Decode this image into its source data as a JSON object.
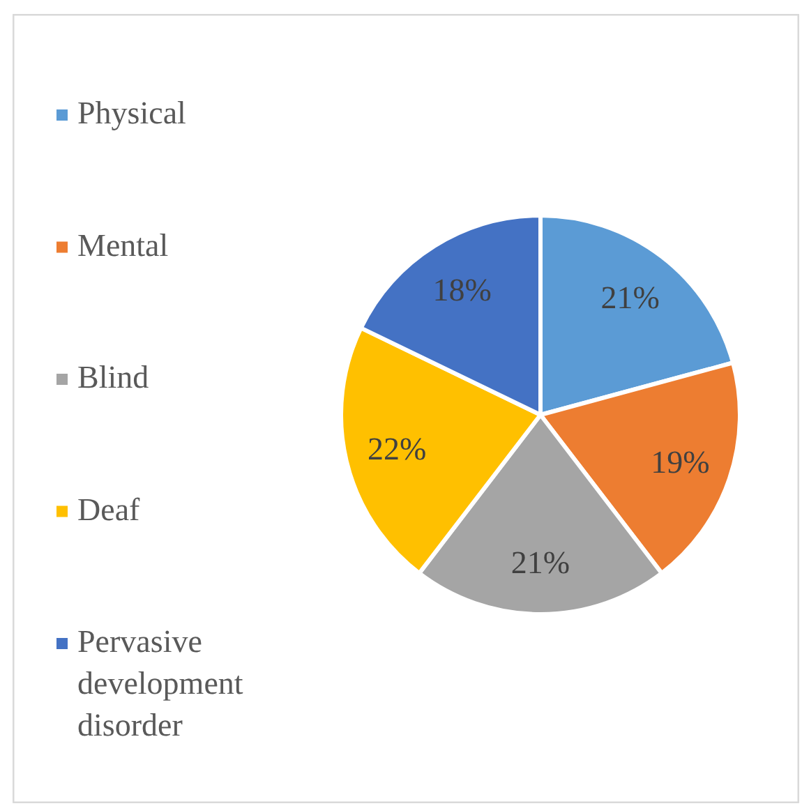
{
  "chart_data": {
    "type": "pie",
    "categories": [
      "Physical",
      "Mental",
      "Blind",
      "Deaf",
      "Pervasive development disorder"
    ],
    "values": [
      21,
      19,
      21,
      22,
      18
    ],
    "colors": [
      "#5b9bd5",
      "#ed7d31",
      "#a5a5a5",
      "#ffc000",
      "#4472c4"
    ],
    "value_labels": [
      "21%",
      "19%",
      "21%",
      "22%",
      "18%"
    ],
    "legend": "left"
  }
}
